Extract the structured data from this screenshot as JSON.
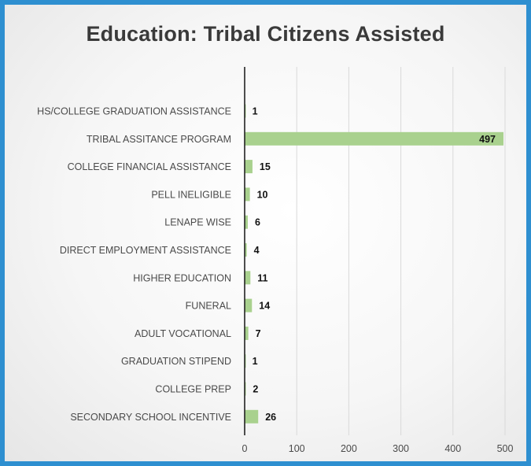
{
  "chart_data": {
    "type": "bar",
    "orientation": "horizontal",
    "title": "Education: Tribal Citizens Assisted",
    "categories": [
      "HS/COLLEGE GRADUATION ASSISTANCE",
      "TRIBAL ASSITANCE PROGRAM",
      "COLLEGE FINANCIAL ASSISTANCE",
      "PELL INELIGIBLE",
      "LENAPE WISE",
      "DIRECT EMPLOYMENT ASSISTANCE",
      "HIGHER EDUCATION",
      "FUNERAL",
      "ADULT VOCATIONAL",
      "GRADUATION STIPEND",
      "COLLEGE PREP",
      "SECONDARY SCHOOL INCENTIVE"
    ],
    "values": [
      1,
      497,
      15,
      10,
      6,
      4,
      11,
      14,
      7,
      1,
      2,
      26
    ],
    "xlim": [
      0,
      500
    ],
    "xticks": [
      0,
      100,
      200,
      300,
      400,
      500
    ],
    "xlabel": "",
    "ylabel": "",
    "grid": "vertical",
    "legend": "none",
    "data_labels": true,
    "colors": {
      "bar": "#a9d18e",
      "axis": "#222222",
      "grid": "#d9d9d9",
      "frame": "#2e8fd0"
    }
  }
}
